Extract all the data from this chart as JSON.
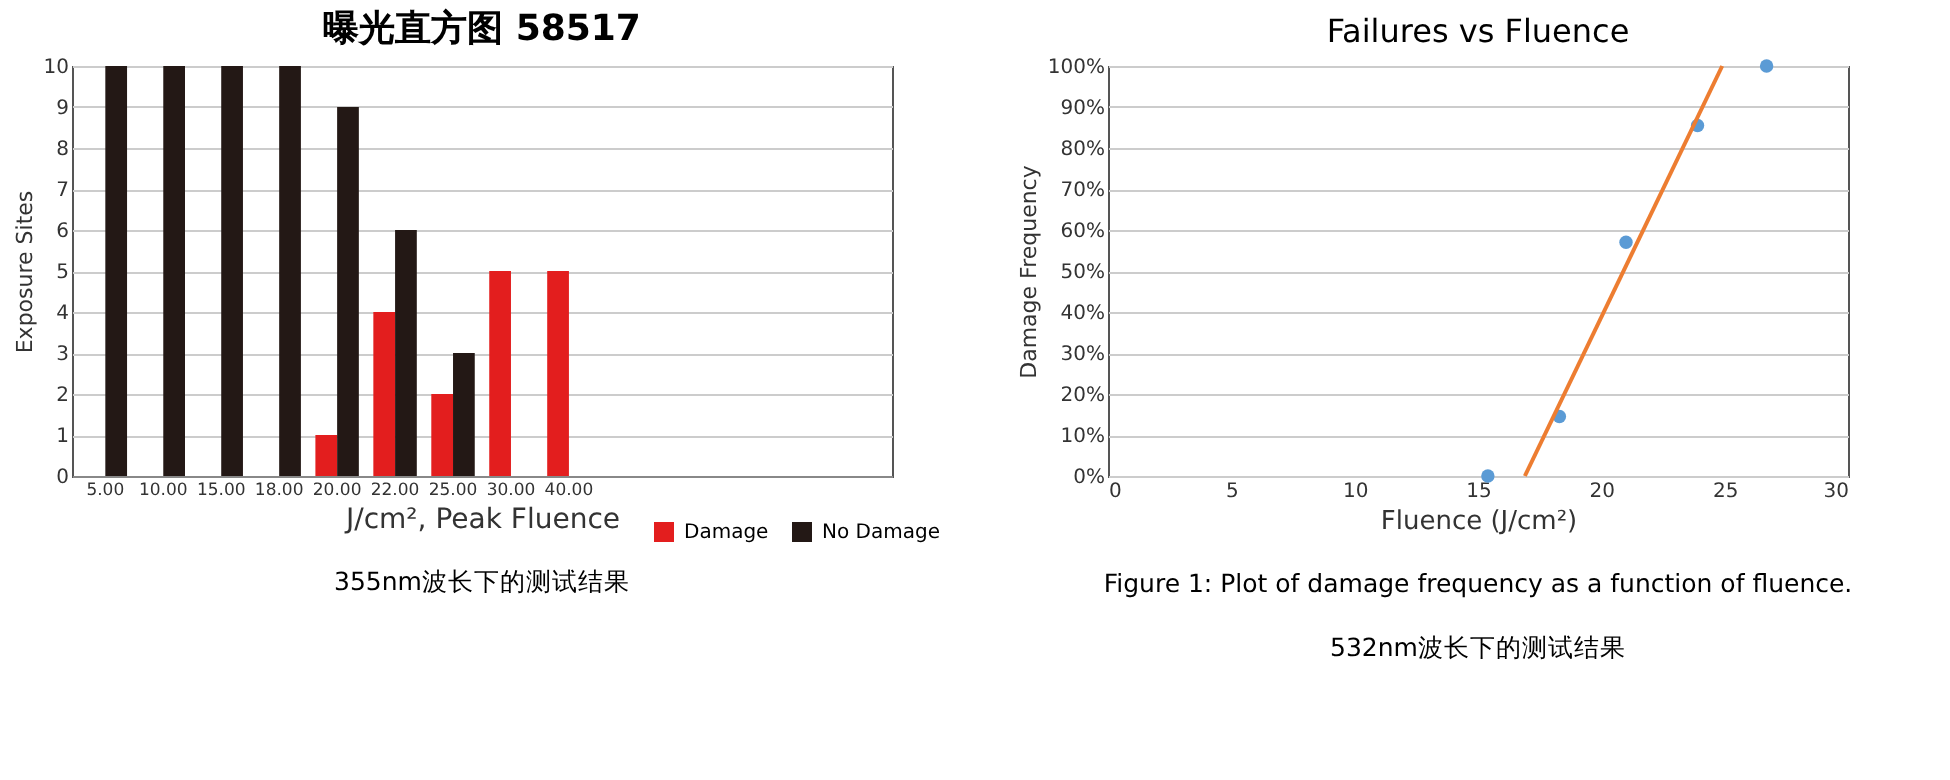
{
  "chart_data": [
    {
      "type": "bar",
      "title": "曝光直方图 58517",
      "xlabel": "J/cm², Peak Fluence",
      "ylabel": "Exposure Sites",
      "categories": [
        "5.00",
        "10.00",
        "15.00",
        "18.00",
        "20.00",
        "22.00",
        "25.00",
        "30.00",
        "40.00",
        null,
        null,
        null,
        null,
        null
      ],
      "series": [
        {
          "name": "Damage",
          "color": "#e31e1e",
          "values": [
            null,
            null,
            null,
            null,
            1,
            4,
            2,
            5,
            5,
            null,
            null,
            null,
            null,
            null
          ]
        },
        {
          "name": "No Damage",
          "color": "#231815",
          "values": [
            10,
            10,
            10,
            10,
            9,
            6,
            3,
            null,
            null,
            null,
            null,
            null,
            null,
            null
          ]
        }
      ],
      "ylim": [
        0,
        10
      ],
      "yticks": [
        0,
        1,
        2,
        3,
        4,
        5,
        6,
        7,
        8,
        9,
        10
      ],
      "grid": "y",
      "legend": "bottom right",
      "annotations": [
        "355nm波长下的测试结果"
      ]
    },
    {
      "type": "scatter",
      "title": "Failures vs Fluence",
      "xlabel": "Fluence (J/cm²)",
      "ylabel": "Damage Frequency",
      "series": [
        {
          "type": "scatter",
          "color": "#5b9bd5",
          "marker": "circle",
          "x": [
            15.4,
            18.3,
            21,
            23.9,
            26.7
          ],
          "values": [
            0,
            14.5,
            57,
            85.5,
            100
          ]
        },
        {
          "type": "line",
          "color": "#ed7d31",
          "line_style": "solid",
          "x": [
            16.9,
            24.9
          ],
          "values": [
            0,
            100
          ]
        }
      ],
      "xlim": [
        0,
        30
      ],
      "xticks": [
        0,
        5,
        10,
        15,
        20,
        25,
        30
      ],
      "ylim": [
        0,
        100
      ],
      "yticks": [
        {
          "value": 0,
          "label": "0%"
        },
        {
          "value": 10,
          "label": "10%"
        },
        {
          "value": 20,
          "label": "20%"
        },
        {
          "value": 30,
          "label": "30%"
        },
        {
          "value": 40,
          "label": "40%"
        },
        {
          "value": 50,
          "label": "50%"
        },
        {
          "value": 60,
          "label": "60%"
        },
        {
          "value": 70,
          "label": "70%"
        },
        {
          "value": 80,
          "label": "80%"
        },
        {
          "value": 90,
          "label": "90%"
        },
        {
          "value": 100,
          "label": "100%"
        }
      ],
      "grid": "y",
      "annotations": [
        "Figure 1: Plot of damage frequency as a function of fluence.",
        "532nm波长下的测试结果"
      ]
    }
  ]
}
